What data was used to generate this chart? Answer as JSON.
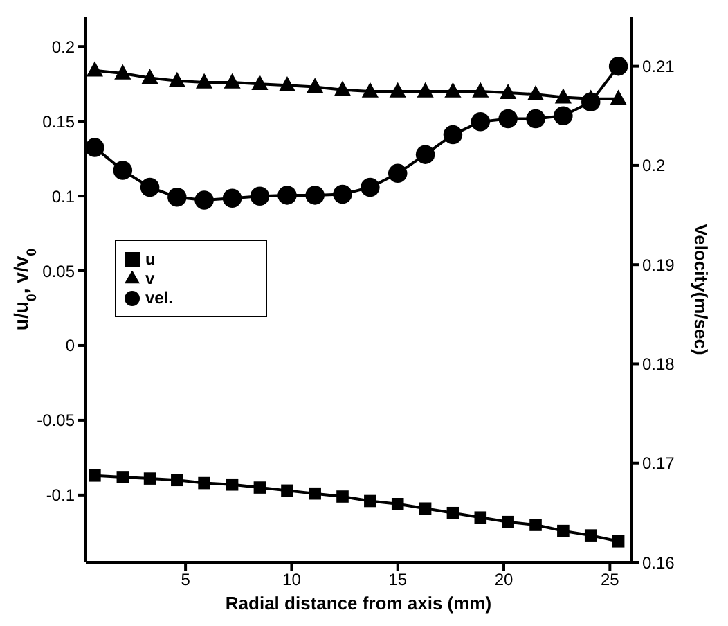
{
  "chart_data": {
    "type": "line",
    "xlabel": "Radial distance from axis (mm)",
    "ylabel": "u/u$_{0}$, v/v$_{0}$",
    "y2label": "Velocity(m/sec)",
    "x": [
      0.72,
      2.04,
      3.32,
      4.6,
      5.88,
      7.2,
      8.5,
      9.79,
      11.1,
      12.4,
      13.7,
      15.0,
      16.3,
      17.6,
      18.9,
      20.2,
      21.5,
      22.8,
      24.1,
      25.4
    ],
    "series": [
      {
        "name": "u",
        "color": "#000000",
        "marker": "square",
        "values": [
          -0.087,
          -0.088,
          -0.089,
          -0.09,
          -0.092,
          -0.093,
          -0.095,
          -0.097,
          -0.099,
          -0.101,
          -0.104,
          -0.106,
          -0.109,
          -0.112,
          -0.115,
          -0.118,
          -0.12,
          -0.124,
          -0.127,
          -0.131
        ]
      },
      {
        "name": "v",
        "color": "#000000",
        "marker": "triangle",
        "values": [
          0.184,
          0.182,
          0.179,
          0.177,
          0.176,
          0.176,
          0.175,
          0.174,
          0.173,
          0.171,
          0.17,
          0.17,
          0.17,
          0.17,
          0.17,
          0.169,
          0.168,
          0.166,
          0.165,
          0.165
        ]
      },
      {
        "name": "vel.",
        "color": "#000000",
        "marker": "circle",
        "axis": "y2",
        "values": [
          0.2018,
          0.1995,
          0.1978,
          0.1968,
          0.1965,
          0.1967,
          0.1969,
          0.197,
          0.197,
          0.1971,
          0.1978,
          0.1992,
          0.2011,
          0.2031,
          0.2044,
          0.2047,
          0.2047,
          0.205,
          0.2064,
          0.21
        ]
      }
    ],
    "xlim": [
      0.3,
      26
    ],
    "xticks": [
      5,
      10,
      15,
      20,
      25
    ],
    "ylim": [
      -0.145,
      0.22
    ],
    "yticks": [
      -0.1,
      -0.05,
      0,
      0.05,
      0.1,
      0.15,
      0.2
    ],
    "y2lim": [
      0.16,
      0.215
    ],
    "y2ticks": [
      0.16,
      0.17,
      0.18,
      0.19,
      0.2,
      0.21
    ],
    "grid": false,
    "legend": "left",
    "line_style": "solid"
  }
}
